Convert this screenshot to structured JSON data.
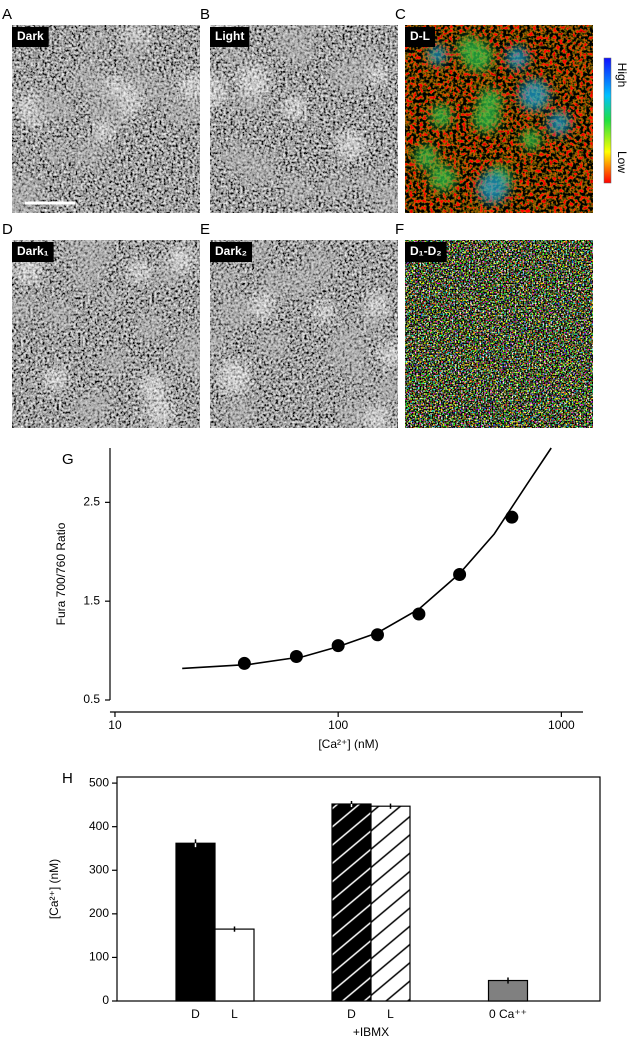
{
  "panels": [
    {
      "letter": "A",
      "label": "Dark"
    },
    {
      "letter": "B",
      "label": "Light"
    },
    {
      "letter": "C",
      "label": "D-L"
    },
    {
      "letter": "D",
      "label": "Dark₁"
    },
    {
      "letter": "E",
      "label": "Dark₂"
    },
    {
      "letter": "F",
      "label": "D₁-D₂"
    }
  ],
  "colorbar": {
    "high": "High",
    "low": "Low"
  },
  "chart_data": [
    {
      "type": "scatter",
      "letter": "G",
      "x_label": "[Ca²⁺] (nM)",
      "y_label": "Fura 700/760 Ratio",
      "log_x": true,
      "x": [
        38,
        65,
        100,
        150,
        230,
        350,
        600
      ],
      "values": [
        0.87,
        0.94,
        1.05,
        1.16,
        1.37,
        1.77,
        2.35
      ],
      "color": "#000000",
      "fit": {
        "x": [
          20,
          40,
          70,
          100,
          150,
          230,
          350,
          500,
          700,
          900
        ],
        "values": [
          0.82,
          0.86,
          0.94,
          1.04,
          1.18,
          1.42,
          1.78,
          2.18,
          2.68,
          3.05
        ]
      },
      "xlim": [
        9.5,
        1250
      ],
      "xticks": [
        10,
        100,
        1000
      ],
      "ylim": [
        0.5,
        3.05
      ],
      "yticks": [
        0.5,
        1.5,
        2.5
      ]
    },
    {
      "type": "bar",
      "letter": "H",
      "y_label": "[Ca²⁺] (nM)",
      "groups": [
        {
          "label": null,
          "categories": [
            "D",
            "L"
          ],
          "values": [
            362,
            165
          ],
          "errors": [
            9,
            6
          ],
          "colors": [
            "#000000",
            "#ffffff"
          ],
          "hatch": false
        },
        {
          "label": "+IBMX",
          "categories": [
            "D",
            "L"
          ],
          "values": [
            452,
            447
          ],
          "errors": [
            7,
            6
          ],
          "colors": [
            "#000000",
            "#ffffff"
          ],
          "hatch": true
        },
        {
          "label": null,
          "categories": [
            "0 Ca⁺⁺"
          ],
          "values": [
            47
          ],
          "errors": [
            7
          ],
          "colors": [
            "#808080"
          ],
          "hatch": false
        }
      ],
      "ylim": [
        0,
        514
      ],
      "yticks": [
        0,
        100,
        200,
        300,
        400,
        500
      ]
    }
  ]
}
